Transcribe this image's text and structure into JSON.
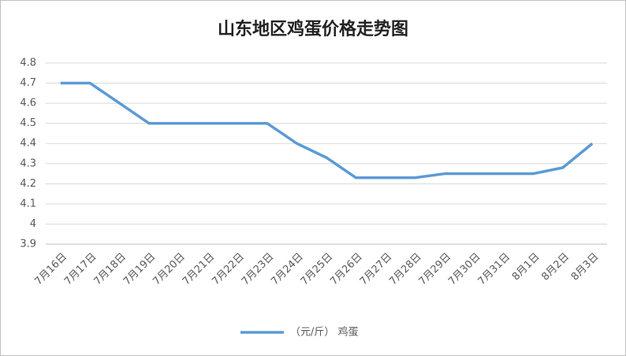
{
  "chart_data": {
    "type": "line",
    "title": "山东地区鸡蛋价格走势图",
    "categories": [
      "7月16日",
      "7月17日",
      "7月18日",
      "7月19日",
      "7月20日",
      "7月21日",
      "7月22日",
      "7月23日",
      "7月24日",
      "7月25日",
      "7月26日",
      "7月27日",
      "7月28日",
      "7月29日",
      "7月30日",
      "7月31日",
      "8月1日",
      "8月2日",
      "8月3日"
    ],
    "series": [
      {
        "name": "（元/斤） 鸡蛋",
        "color": "#5b9bd5",
        "values": [
          4.7,
          4.7,
          4.6,
          4.5,
          4.5,
          4.5,
          4.5,
          4.5,
          4.4,
          4.33,
          4.23,
          4.23,
          4.23,
          4.25,
          4.25,
          4.25,
          4.25,
          4.28,
          4.4
        ]
      }
    ],
    "ylim": [
      3.9,
      4.8
    ],
    "yticks": [
      3.9,
      4,
      4.1,
      4.2,
      4.3,
      4.4,
      4.5,
      4.6,
      4.7,
      4.8
    ],
    "grid": true,
    "legend": "bottom"
  }
}
